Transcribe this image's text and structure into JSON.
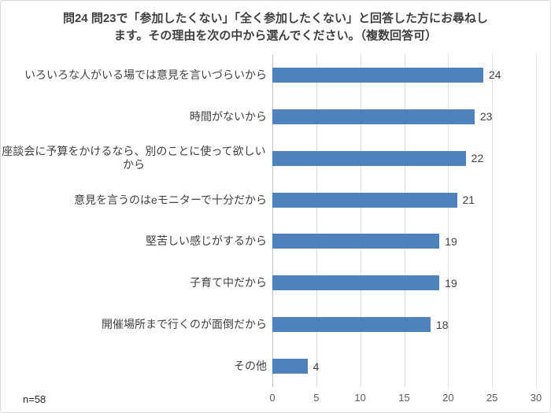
{
  "title": {
    "lines": [
      "問24 問23で「参加したくない」「全く参加したくない」と回答した方にお尋ねし",
      "ます。その理由を次の中から選んでください。（複数回答可）"
    ]
  },
  "footnote": "n=58",
  "colors": {
    "bar": "#4f81bd",
    "gridline": "#dcdee0",
    "axis_line": "#c0c4c9",
    "border": "#d6dade",
    "title_text": "#3f3f3f",
    "label_text": "#404040",
    "value_text": "#404040",
    "tick_text": "#595959",
    "footnote_text": "#262626"
  },
  "chart_data": {
    "type": "bar",
    "orientation": "horizontal",
    "title": "問24 問23で「参加したくない」「全く参加したくない」と回答した方にお尋ねします。その理由を次の中から選んでください。（複数回答可）",
    "categories": [
      "いろいろな人がいる場では意見を言いづらいから",
      "時間がないから",
      "座談会に予算をかけるなら、別のことに使って欲しいから",
      "意見を言うのはeモニターで十分だから",
      "堅苦しい感じがするから",
      "子育て中だから",
      "開催場所まで行くのが面倒だから",
      "その他"
    ],
    "values": [
      24,
      23,
      22,
      21,
      19,
      19,
      18,
      4
    ],
    "xlabel": "",
    "ylabel": "",
    "xlim": [
      0,
      30
    ],
    "xticks": [
      0,
      5,
      10,
      15,
      20,
      25,
      30
    ],
    "grid": true,
    "data_labels": true,
    "legend": false,
    "sample_size": "n=58"
  }
}
